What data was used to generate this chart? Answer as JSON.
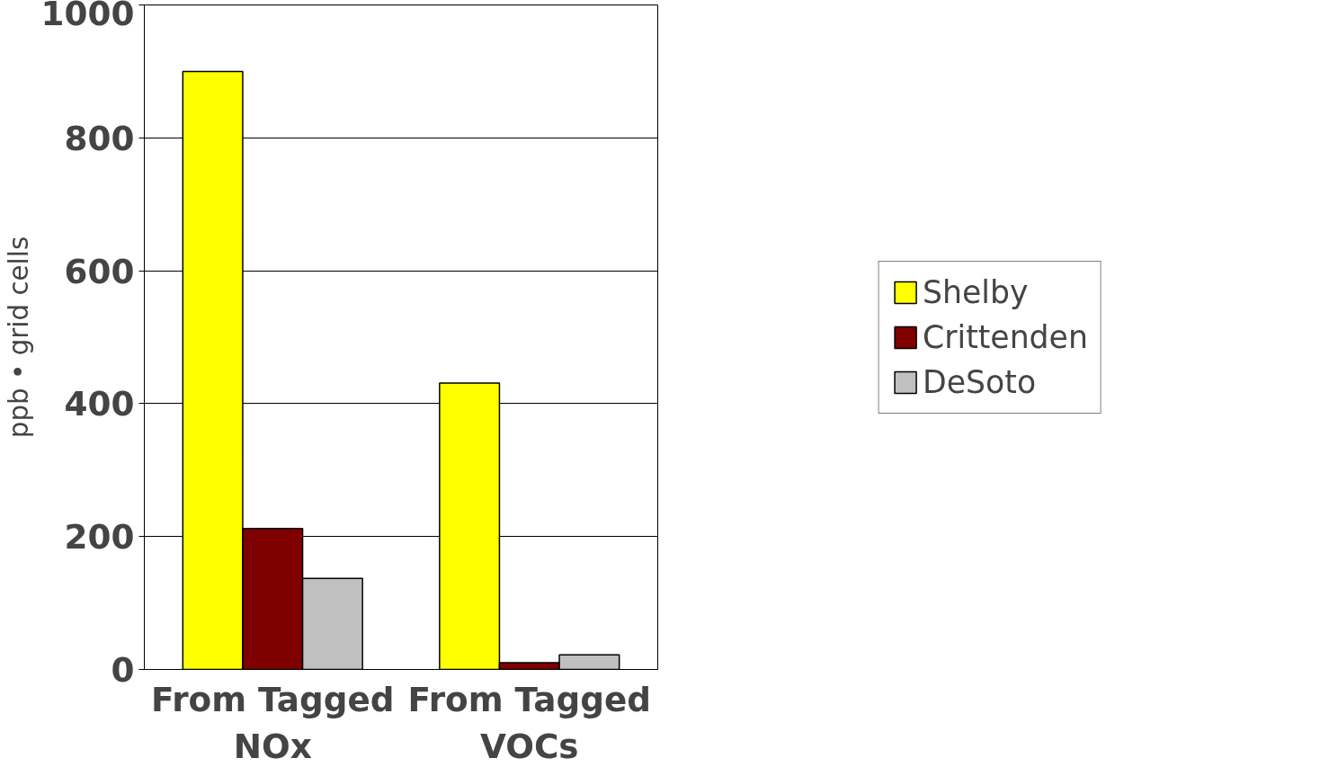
{
  "chart_data": {
    "type": "bar",
    "ylabel": "ppb • grid cells",
    "categories": [
      "From Tagged NOx",
      "From Tagged VOCs"
    ],
    "series": [
      {
        "name": "Shelby",
        "color": "#ffff00",
        "values": [
          900,
          431
        ]
      },
      {
        "name": "Crittenden",
        "color": "#800000",
        "values": [
          212,
          10
        ]
      },
      {
        "name": "DeSoto",
        "color": "#c0c0c0",
        "values": [
          137,
          22
        ]
      }
    ],
    "ylim": [
      0,
      1000
    ],
    "yticks": [
      0,
      200,
      400,
      600,
      800,
      1000
    ],
    "grid": "y",
    "legend": "right"
  }
}
